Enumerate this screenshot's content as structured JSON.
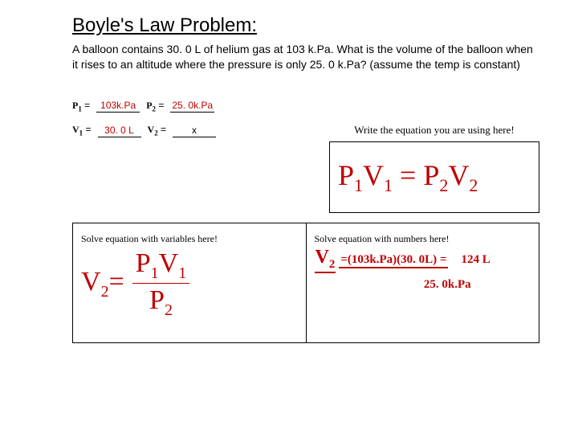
{
  "title": "Boyle's Law Problem:",
  "problem": "A balloon contains 30. 0 L of helium gas at 103 k.Pa.  What is the volume of the balloon when it rises to an altitude where the pressure is only 25. 0 k.Pa? (assume the temp is constant)",
  "givens": {
    "p1_label": "P",
    "p1_sub": "1",
    "eq": " = ",
    "p1_val": "103k.Pa",
    "p2_label": "P",
    "p2_sub": "2",
    "p2_val": "25. 0k.Pa",
    "v1_label": "V",
    "v1_sub": "1",
    "v1_val": "30. 0 L",
    "v2_label": "V",
    "v2_sub": "2",
    "v2_val": "x"
  },
  "eq_prompt": "Write the equation you are using here!",
  "equation": {
    "lhs_p": "P",
    "lhs_p_s": "1",
    "lhs_v": "V",
    "lhs_v_s": "1",
    "mid": " = ",
    "rhs_p": "P",
    "rhs_p_s": "2",
    "rhs_v": "V",
    "rhs_v_s": "2"
  },
  "solve_var_prompt": "Solve equation with variables here!",
  "solve_num_prompt": "Solve equation with numbers here!",
  "deriv": {
    "lhs_v": "V",
    "lhs_v_s": "2",
    "lhs_eq": "=",
    "num_p": "P",
    "num_p_s": "1",
    "num_v": "V",
    "num_v_s": "1",
    "den_p": "P",
    "den_p_s": "2"
  },
  "numeric": {
    "v2": "V",
    "v2s": "2",
    "eqp": "=(103k.Pa)(30. 0L)  =",
    "ans": "124 L",
    "den": "25. 0k.Pa"
  },
  "colors": {
    "answer_red": "#c00000",
    "text": "#000000"
  }
}
